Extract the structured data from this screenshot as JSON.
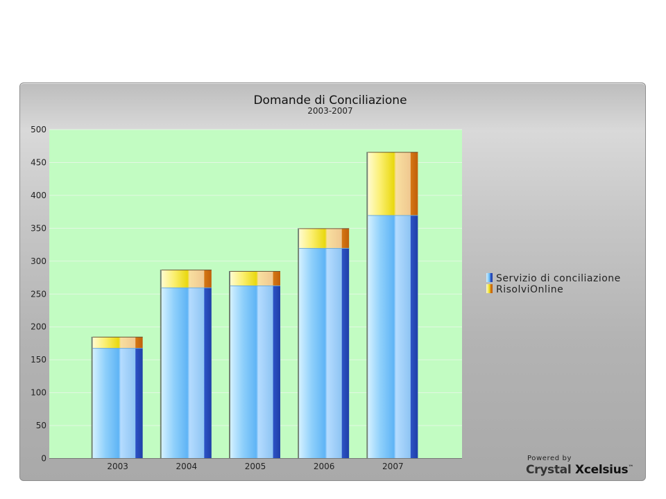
{
  "chart_data": {
    "type": "bar",
    "stacked": true,
    "title": "Domande di Conciliazione",
    "subtitle": "2003-2007",
    "categories": [
      "2003",
      "2004",
      "2005",
      "2006",
      "2007"
    ],
    "series": [
      {
        "name": "Servizio di conciliazione",
        "values": [
          168,
          260,
          263,
          320,
          370
        ]
      },
      {
        "name": "RisolviOnline",
        "values": [
          17,
          27,
          22,
          30,
          96
        ]
      }
    ],
    "ylim": [
      0,
      500
    ],
    "yticks": [
      "0",
      "50",
      "100",
      "150",
      "200",
      "250",
      "300",
      "350",
      "400",
      "450",
      "500"
    ],
    "grid": true,
    "legend_position": "right",
    "plot_background": "#c0fbc0",
    "colors": {
      "series1_light": "#cdeeff",
      "series1_mid": "#79c3f7",
      "series1_side": "#2b4fbf",
      "series2_light": "#fff8b8",
      "series2_mid": "#f0e020",
      "series2_side": "#d07010"
    }
  },
  "branding": {
    "powered_by": "Powered by",
    "brand": "Crystal",
    "product": "Xcelsius"
  }
}
